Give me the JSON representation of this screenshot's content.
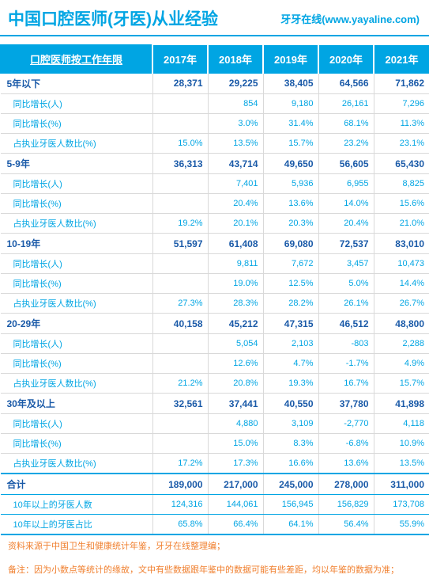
{
  "title": "中国口腔医师(牙医)从业经验",
  "subtitle": "牙牙在线(www.yayaline.com)",
  "corner": "口腔医师按工作年限",
  "years": [
    "2017年",
    "2018年",
    "2019年",
    "2020年",
    "2021年"
  ],
  "sublabels": [
    "同比增长(人)",
    "同比增长(%)",
    "占执业牙医人数比(%)"
  ],
  "groups": [
    {
      "name": "5年以下",
      "count": [
        "28,371",
        "29,225",
        "38,405",
        "64,566",
        "71,862"
      ],
      "abs": [
        "",
        "854",
        "9,180",
        "26,161",
        "7,296"
      ],
      "pct": [
        "",
        "3.0%",
        "31.4%",
        "68.1%",
        "11.3%"
      ],
      "shr": [
        "15.0%",
        "13.5%",
        "15.7%",
        "23.2%",
        "23.1%"
      ]
    },
    {
      "name": "5-9年",
      "count": [
        "36,313",
        "43,714",
        "49,650",
        "56,605",
        "65,430"
      ],
      "abs": [
        "",
        "7,401",
        "5,936",
        "6,955",
        "8,825"
      ],
      "pct": [
        "",
        "20.4%",
        "13.6%",
        "14.0%",
        "15.6%"
      ],
      "shr": [
        "19.2%",
        "20.1%",
        "20.3%",
        "20.4%",
        "21.0%"
      ]
    },
    {
      "name": "10-19年",
      "count": [
        "51,597",
        "61,408",
        "69,080",
        "72,537",
        "83,010"
      ],
      "abs": [
        "",
        "9,811",
        "7,672",
        "3,457",
        "10,473"
      ],
      "pct": [
        "",
        "19.0%",
        "12.5%",
        "5.0%",
        "14.4%"
      ],
      "shr": [
        "27.3%",
        "28.3%",
        "28.2%",
        "26.1%",
        "26.7%"
      ]
    },
    {
      "name": "20-29年",
      "count": [
        "40,158",
        "45,212",
        "47,315",
        "46,512",
        "48,800"
      ],
      "abs": [
        "",
        "5,054",
        "2,103",
        "-803",
        "2,288"
      ],
      "pct": [
        "",
        "12.6%",
        "4.7%",
        "-1.7%",
        "4.9%"
      ],
      "shr": [
        "21.2%",
        "20.8%",
        "19.3%",
        "16.7%",
        "15.7%"
      ]
    },
    {
      "name": "30年及以上",
      "count": [
        "32,561",
        "37,441",
        "40,550",
        "37,780",
        "41,898"
      ],
      "abs": [
        "",
        "4,880",
        "3,109",
        "-2,770",
        "4,118"
      ],
      "pct": [
        "",
        "15.0%",
        "8.3%",
        "-6.8%",
        "10.9%"
      ],
      "shr": [
        "17.2%",
        "17.3%",
        "16.6%",
        "13.6%",
        "13.5%"
      ]
    }
  ],
  "total": {
    "name": "合计",
    "v": [
      "189,000",
      "217,000",
      "245,000",
      "278,000",
      "311,000"
    ]
  },
  "ten_count": {
    "name": "10年以上的牙医人数",
    "v": [
      "124,316",
      "144,061",
      "156,945",
      "156,829",
      "173,708"
    ]
  },
  "ten_pct": {
    "name": "10年以上的牙医占比",
    "v": [
      "65.8%",
      "66.4%",
      "64.1%",
      "56.4%",
      "55.9%"
    ]
  },
  "note1": "资料来源于中国卫生和健康统计年鉴，牙牙在线整理编；",
  "note2": "备注：因为小数点等统计的缘故，文中有些数据跟年鉴中的数据可能有些差距，均以年鉴的数据为准；"
}
